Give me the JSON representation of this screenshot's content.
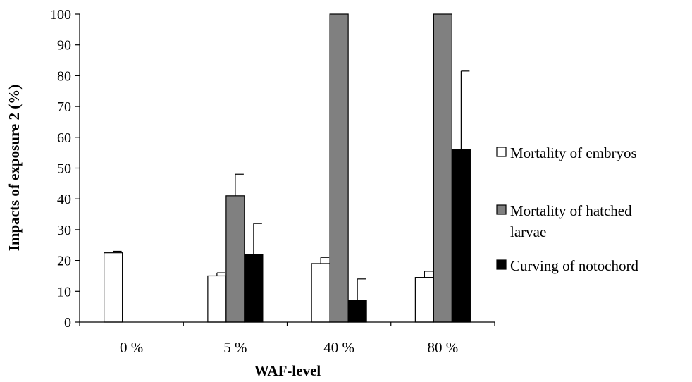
{
  "chart_data": {
    "type": "bar",
    "categories": [
      "0 %",
      "5 %",
      "40 %",
      "80 %"
    ],
    "xlabel": "WAF-level",
    "ylabel": "Impacts of exposure 2 (%)",
    "ylim": [
      0,
      100
    ],
    "yticks": [
      "0",
      "10",
      "20",
      "30",
      "40",
      "50",
      "60",
      "70",
      "80",
      "90",
      "100"
    ],
    "grid": false,
    "legend_position": "right",
    "series": [
      {
        "name": "Mortality of embryos",
        "legend_lines": [
          "Mortality of embryos"
        ],
        "color": "#ffffff",
        "values": [
          22.5,
          15,
          19,
          14.5
        ],
        "errors": [
          0.5,
          1,
          2,
          2
        ]
      },
      {
        "name": "Mortality of hatched larvae",
        "legend_lines": [
          "Mortality of hatched",
          "larvae"
        ],
        "color": "#808080",
        "values": [
          0,
          41,
          100,
          100
        ],
        "errors": [
          0,
          7,
          0,
          0
        ]
      },
      {
        "name": "Curving of notochord",
        "legend_lines": [
          "Curving of notochord"
        ],
        "color": "#000000",
        "values": [
          0,
          22,
          7,
          56
        ],
        "errors": [
          0,
          10,
          7,
          25.5
        ]
      }
    ]
  }
}
